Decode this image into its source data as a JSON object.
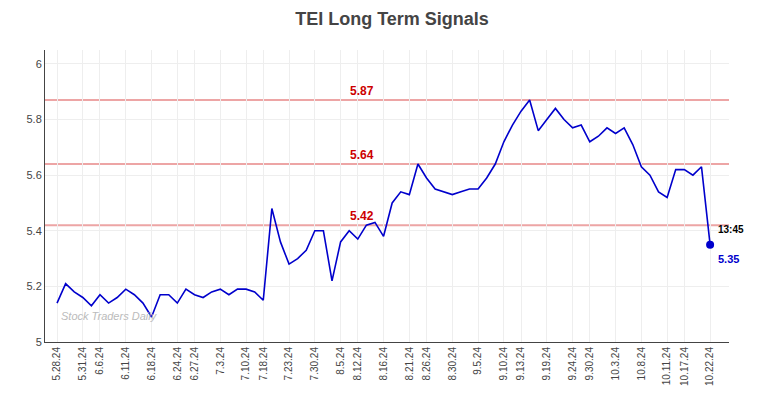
{
  "chart_data": {
    "type": "line",
    "title": "TEI Long Term Signals",
    "categories": [
      "5.28.24",
      null,
      null,
      "5.31.24",
      null,
      "6.6.24",
      null,
      null,
      "6.11.24",
      null,
      null,
      "6.18.24",
      null,
      null,
      "6.24.24",
      null,
      "6.27.24",
      null,
      null,
      "7.3.24",
      null,
      null,
      "7.10.24",
      null,
      "7.18.24",
      null,
      null,
      "7.23.24",
      null,
      null,
      "7.30.24",
      null,
      null,
      "8.5.24",
      null,
      "8.12.24",
      null,
      null,
      "8.16.24",
      null,
      null,
      "8.21.24",
      null,
      "8.26.24",
      null,
      null,
      "8.30.24",
      null,
      null,
      "9.5.24",
      null,
      null,
      "9.10.24",
      null,
      "9.13.24",
      null,
      null,
      "9.19.24",
      null,
      null,
      "9.24.24",
      null,
      "9.30.24",
      null,
      null,
      "10.3.24",
      null,
      null,
      "10.8.24",
      null,
      null,
      "10.11.24",
      null,
      "10.17.24",
      null,
      null,
      "10.22.24"
    ],
    "values": [
      5.14,
      5.21,
      5.18,
      5.16,
      5.13,
      5.17,
      5.14,
      5.16,
      5.19,
      5.17,
      5.14,
      5.09,
      5.17,
      5.17,
      5.14,
      5.19,
      5.17,
      5.16,
      5.18,
      5.19,
      5.17,
      5.19,
      5.19,
      5.18,
      5.15,
      5.48,
      5.36,
      5.28,
      5.3,
      5.33,
      5.4,
      5.4,
      5.22,
      5.36,
      5.4,
      5.37,
      5.42,
      5.43,
      5.38,
      5.5,
      5.54,
      5.53,
      5.64,
      5.59,
      5.55,
      5.54,
      5.53,
      5.54,
      5.55,
      5.55,
      5.59,
      5.64,
      5.72,
      5.78,
      5.83,
      5.87,
      5.76,
      5.8,
      5.84,
      5.8,
      5.77,
      5.78,
      5.72,
      5.74,
      5.77,
      5.75,
      5.77,
      5.71,
      5.63,
      5.6,
      5.54,
      5.52,
      5.62,
      5.62,
      5.6,
      5.63,
      5.35
    ],
    "color": "#0000cc",
    "hlines": [
      {
        "value": 5.87,
        "label": "5.87",
        "color": "#cc0000"
      },
      {
        "value": 5.64,
        "label": "5.64",
        "color": "#cc0000"
      },
      {
        "value": 5.42,
        "label": "5.42",
        "color": "#cc0000"
      }
    ],
    "annotations": [
      "Stock Traders Daily",
      "13:45",
      "5.35"
    ],
    "ylim": [
      5.0,
      6.05
    ],
    "yticks": [
      5,
      5.2,
      5.4,
      5.6,
      5.8,
      6
    ],
    "grid": true
  }
}
